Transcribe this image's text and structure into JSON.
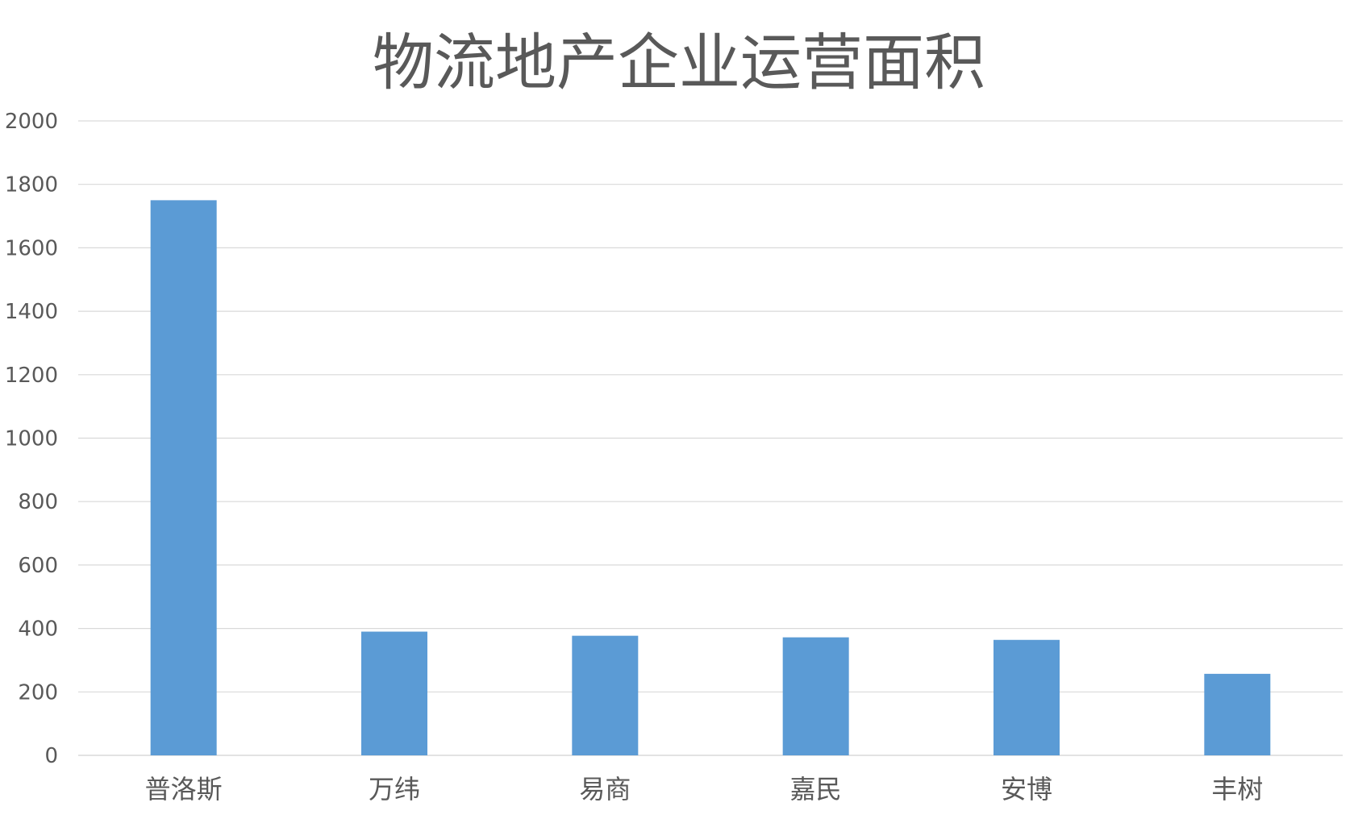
{
  "chart_data": {
    "type": "bar",
    "title": "物流地产企业运营面积",
    "categories": [
      "普洛斯",
      "万纬",
      "易商",
      "嘉民",
      "安博",
      "丰树"
    ],
    "values": [
      1750,
      390,
      377,
      372,
      364,
      257
    ],
    "ylim": [
      0,
      2000
    ],
    "yticks": [
      0,
      200,
      400,
      600,
      800,
      1000,
      1200,
      1400,
      1600,
      1800,
      2000
    ],
    "grid": true,
    "legend": "none",
    "bar_color": "#5B9BD5",
    "grid_color": "#D9D9D9",
    "text_color": "#595959"
  }
}
